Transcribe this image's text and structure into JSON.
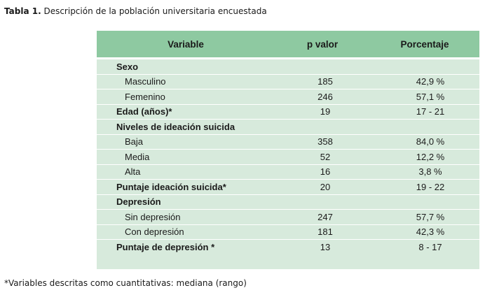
{
  "caption": {
    "label": "Tabla 1.",
    "text": "Descripción de la población universitaria encuestada"
  },
  "table": {
    "headers": [
      "Variable",
      "p valor",
      "Porcentaje"
    ],
    "rows": [
      {
        "variable": "Sexo",
        "value": "",
        "percent": ""
      },
      {
        "variable": "Masculino",
        "value": "185",
        "percent": "42,9 %"
      },
      {
        "variable": "Femenino",
        "value": "246",
        "percent": "57,1 %"
      },
      {
        "variable": "Edad (años)*",
        "value": "19",
        "percent": "17 - 21"
      },
      {
        "variable": "Niveles de ideación suicida",
        "value": "",
        "percent": ""
      },
      {
        "variable": "Baja",
        "value": "358",
        "percent": "84,0 %"
      },
      {
        "variable": "Media",
        "value": "52",
        "percent": "12,2 %"
      },
      {
        "variable": "Alta",
        "value": "16",
        "percent": "3,8 %"
      },
      {
        "variable": "Puntaje ideación suicida*",
        "value": "20",
        "percent": "19 - 22"
      },
      {
        "variable": "Depresión",
        "value": "",
        "percent": ""
      },
      {
        "variable": "Sin depresión",
        "value": "247",
        "percent": "57,7 %"
      },
      {
        "variable": "Con depresión",
        "value": "181",
        "percent": "42,3 %"
      },
      {
        "variable": "Puntaje de depresión *",
        "value": "13",
        "percent": "8 - 17"
      }
    ]
  },
  "footnote": "*Variables descritas como cuantitativas: mediana (rango)",
  "colors": {
    "header_bg": "#8ec9a1",
    "row_bg": "#d7eadc"
  }
}
